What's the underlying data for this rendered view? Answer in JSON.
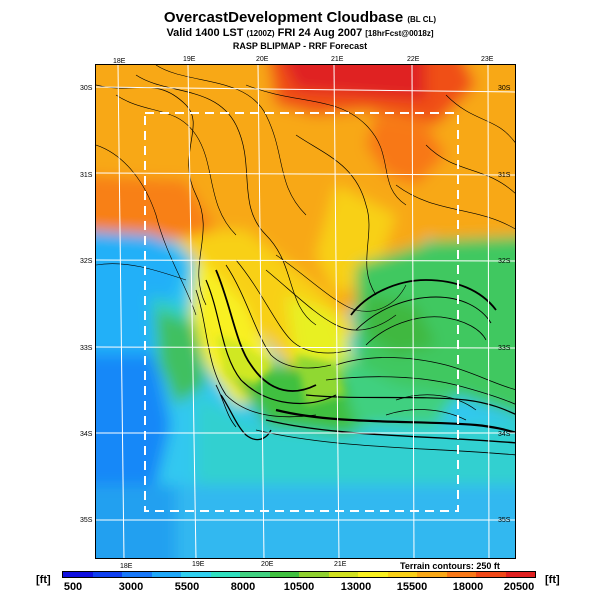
{
  "header": {
    "title": "OvercastDevelopment Cloudbase",
    "title_suffix": "(BL CL)",
    "valid_main": "Valid 1400 LST",
    "valid_zulu": "(1200Z)",
    "valid_date": "FRI 24 Aug 2007",
    "forecast_note": "[18hrFcst@0018z]",
    "subtitle": "RASP BLIPMAP - RRF Forecast"
  },
  "map": {
    "top_lon_labels": [
      "18E",
      "19E",
      "20E",
      "21E",
      "22E",
      "23E"
    ],
    "bottom_lon_labels": [
      "18E",
      "19E",
      "20E",
      "21E"
    ],
    "left_lat_labels": [
      "30S",
      "31S",
      "32S",
      "33S",
      "34S",
      "35S"
    ],
    "right_lat_labels": [
      "30S",
      "31S",
      "32S",
      "33S",
      "34S",
      "35S"
    ],
    "terrain_note": "Terrain contours: 250 ft",
    "colors": {
      "frame_dash": "#ffffff",
      "graticule": "#ffffff",
      "contour": "#000000"
    }
  },
  "colorbar": {
    "unit": "[ft]",
    "labels": [
      "500",
      "3000",
      "5500",
      "8000",
      "10500",
      "13000",
      "15500",
      "18000",
      "20500"
    ],
    "colors": [
      "#1010e0",
      "#1040f0",
      "#1878f8",
      "#20a8f8",
      "#30d0f0",
      "#30e0c0",
      "#40d080",
      "#40c040",
      "#90d030",
      "#d0e020",
      "#f8f020",
      "#f8d018",
      "#f8a818",
      "#f87818",
      "#f04818",
      "#e02020"
    ]
  }
}
